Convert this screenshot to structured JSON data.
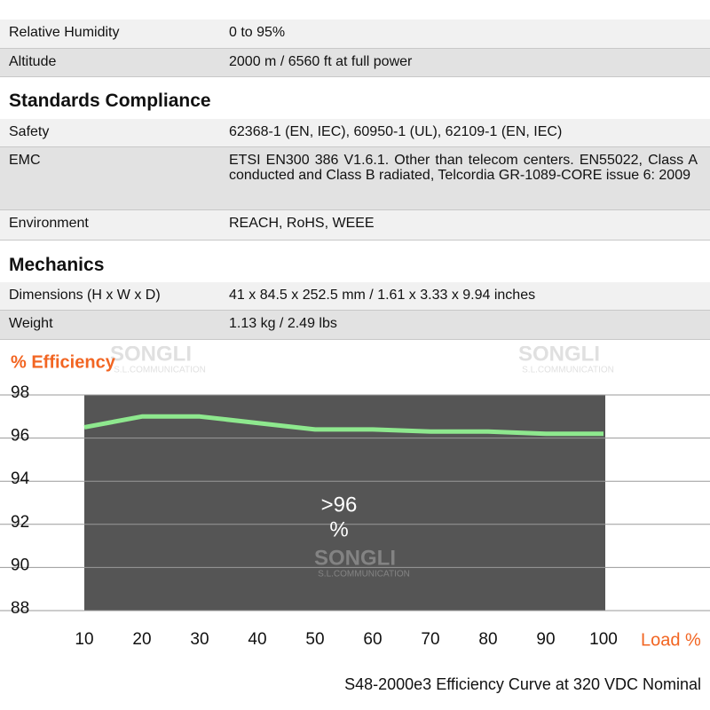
{
  "top_rows": [
    {
      "label": "Relative Humidity",
      "value": "0 to 95%"
    },
    {
      "label": "Altitude",
      "value": "2000 m / 6560 ft at full power"
    }
  ],
  "sections": [
    {
      "title": "Standards Compliance",
      "rows": [
        {
          "label": "Safety",
          "value": "62368-1 (EN, IEC), 60950-1 (UL), 62109-1 (EN, IEC)"
        },
        {
          "label": "EMC",
          "value": "ETSI EN300 386 V1.6.1. Other than telecom centers. EN55022, Class A conducted and Class B radiated, Telcordia GR-1089-CORE issue 6: 2009"
        },
        {
          "label": "Environment",
          "value": "REACH, RoHS, WEEE"
        }
      ]
    },
    {
      "title": "Mechanics",
      "rows": [
        {
          "label": "Dimensions (H x W x D)",
          "value": "41 x 84.5 x 252.5 mm / 1.61 x 3.33 x 9.94 inches"
        },
        {
          "label": "Weight",
          "value": "1.13 kg / 2.49 lbs"
        }
      ]
    }
  ],
  "watermark": {
    "name": "SONGLI",
    "sub": "S.L.COMMUNICATION"
  },
  "chart_data": {
    "type": "line",
    "y_label": "% Efficiency",
    "x_label": "Load %",
    "caption": "S48-2000e3 Efficiency Curve at 320 VDC Nominal",
    "annotation": [
      ">96",
      "%"
    ],
    "x": [
      10,
      20,
      30,
      40,
      50,
      60,
      70,
      80,
      90,
      100
    ],
    "series": [
      {
        "name": "Efficiency",
        "color": "#8ee88e",
        "values": [
          96.5,
          97.0,
          97.0,
          96.7,
          96.4,
          96.4,
          96.3,
          96.3,
          96.2,
          96.2
        ]
      }
    ],
    "xlim": [
      10,
      100
    ],
    "xticks": [
      10,
      20,
      30,
      40,
      50,
      60,
      70,
      80,
      90,
      100
    ],
    "ylim": [
      88,
      98
    ],
    "yticks": [
      88,
      90,
      92,
      94,
      96,
      98
    ],
    "grid": true,
    "plot_background": "#555555",
    "accent_color": "#f26522"
  }
}
